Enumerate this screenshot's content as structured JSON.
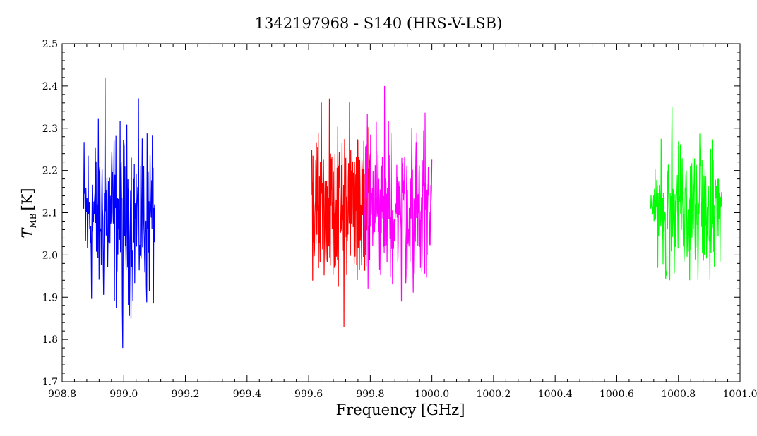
{
  "chart_data": {
    "type": "line",
    "title": "1342197968 - S140 (HRS-V-LSB)",
    "xlabel": "Frequency [GHz]",
    "ylabel_symbol": "T",
    "ylabel_subscript": "MB",
    "ylabel_unit": "[K]",
    "xlim": [
      998.8,
      1001.0
    ],
    "ylim": [
      1.7,
      2.5
    ],
    "x_ticks": [
      "998.8",
      "999.0",
      "999.2",
      "999.4",
      "999.6",
      "999.8",
      "1000.0",
      "1000.2",
      "1000.4",
      "1000.6",
      "1000.8",
      "1001.0"
    ],
    "y_ticks": [
      "1.7",
      "1.8",
      "1.9",
      "2.0",
      "2.1",
      "2.2",
      "2.3",
      "2.4",
      "2.5"
    ],
    "grid": false,
    "series": [
      {
        "color": "#0000ff",
        "x_range": [
          998.87,
          999.1
        ],
        "mean": 2.09,
        "min": 1.78,
        "max": 2.42,
        "points": 190
      },
      {
        "color": "#ff0000",
        "x_range": [
          999.61,
          999.8
        ],
        "mean": 2.12,
        "min": 1.83,
        "max": 2.37,
        "points": 190
      },
      {
        "color": "#ff00ff",
        "x_range": [
          999.78,
          1000.0
        ],
        "mean": 2.12,
        "min": 1.89,
        "max": 2.4,
        "points": 190
      },
      {
        "color": "#00ff00",
        "x_range": [
          1000.71,
          1000.94
        ],
        "mean": 2.12,
        "min": 1.94,
        "max": 2.35,
        "points": 190
      }
    ]
  }
}
